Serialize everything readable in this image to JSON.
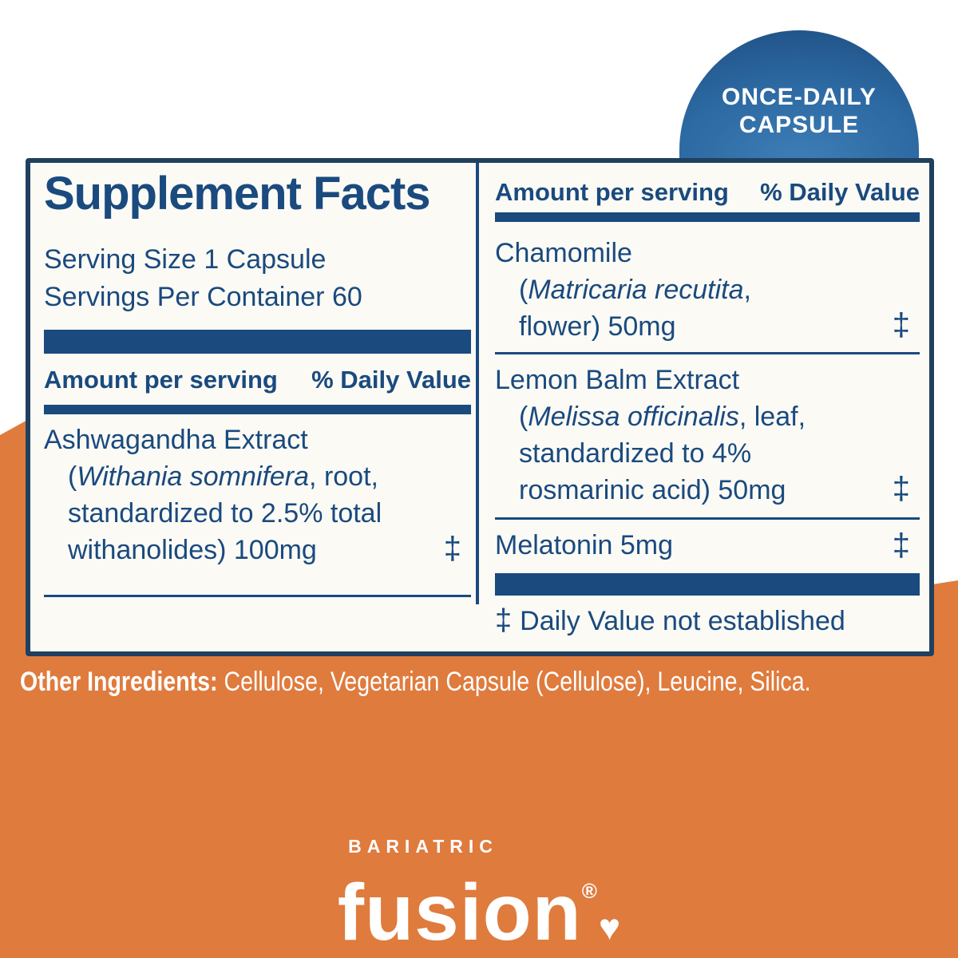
{
  "colors": {
    "navy_text": "#1a4a7e",
    "panel_border_navy": "#21405f",
    "orange": "#df7b3d",
    "dome_blue_center": "#3e7eb6",
    "dome_blue_edge": "#1a4878",
    "white": "#ffffff"
  },
  "badge": {
    "line1": "ONCE-DAILY",
    "line2": "CAPSULE"
  },
  "panel": {
    "title": "Supplement Facts",
    "serving_size": "Serving Size 1 Capsule",
    "servings_per_container": "Servings Per Container 60",
    "column_header": {
      "amount": "Amount per serving",
      "daily_value": "% Daily Value"
    },
    "left": {
      "ashwagandha": {
        "name": "Ashwagandha Extract",
        "line2_pre": "(",
        "line2_italic": "Withania somnifera",
        "line2_post": ", root,",
        "line3": "standardized to 2.5% total",
        "line4": "withanolides) 100mg",
        "daily_value": "‡"
      }
    },
    "right": {
      "chamomile": {
        "name": "Chamomile",
        "line2_pre": "(",
        "line2_italic": "Matricaria recutita",
        "line2_post": ",",
        "line3": "flower) 50mg",
        "daily_value": "‡"
      },
      "lemon_balm": {
        "name": "Lemon Balm Extract",
        "line2_pre": "(",
        "line2_italic": "Melissa officinalis",
        "line2_post": ", leaf,",
        "line3": "standardized to 4%",
        "line4": "rosmarinic acid) 50mg",
        "daily_value": "‡"
      },
      "melatonin": {
        "name": "Melatonin 5mg",
        "daily_value": "‡"
      },
      "footnote_symbol": "‡",
      "footnote_text": "Daily Value not established"
    }
  },
  "other_ingredients": {
    "label": "Other Ingredients:",
    "text": " Cellulose, Vegetarian Capsule (Cellulose), Leucine, Silica."
  },
  "logo": {
    "brand_top": "BARIATRIC",
    "brand_main": "fusion",
    "registered": "®",
    "heart": "♥"
  }
}
